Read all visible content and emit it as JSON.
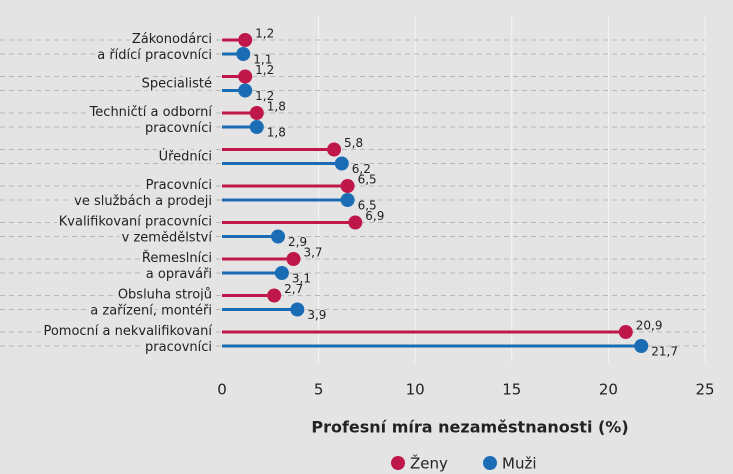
{
  "chart_data": {
    "type": "lollipop",
    "categories": [
      "Zákonodárci\na řídící pracovníci",
      "Specialisté",
      "Techničtí a odborní\npracovníci",
      "Úředníci",
      "Pracovníci\nve službách a prodeji",
      "Kvalifikovaní pracovníci\nv zemědělství",
      "Řemeslníci\na opraváři",
      "Obsluha strojů\na zařízení, montéři",
      "Pomocní a nekvalifikovaní\npracovníci"
    ],
    "series": [
      {
        "name": "Ženy",
        "color": "#c0174a",
        "values": [
          1.2,
          1.2,
          1.8,
          5.8,
          6.5,
          6.9,
          3.7,
          2.7,
          20.9
        ],
        "value_labels": [
          "1,2",
          "1,2",
          "1,8",
          "5,8",
          "6,5",
          "6,9",
          "3,7",
          "2,7",
          "20,9"
        ]
      },
      {
        "name": "Muži",
        "color": "#1a6db5",
        "values": [
          1.1,
          1.2,
          1.8,
          6.2,
          6.5,
          2.9,
          3.1,
          3.9,
          21.7
        ],
        "value_labels": [
          "1,1",
          "1,2",
          "1,8",
          "6,2",
          "6,5",
          "2,9",
          "3,1",
          "3,9",
          "21,7"
        ]
      }
    ],
    "xlabel": "Profesní míra nezaměstnanosti (%)",
    "xlim": [
      0,
      25
    ],
    "xticks": [
      0,
      5,
      10,
      15,
      20,
      25
    ],
    "grid": true,
    "legend": "bottom"
  }
}
